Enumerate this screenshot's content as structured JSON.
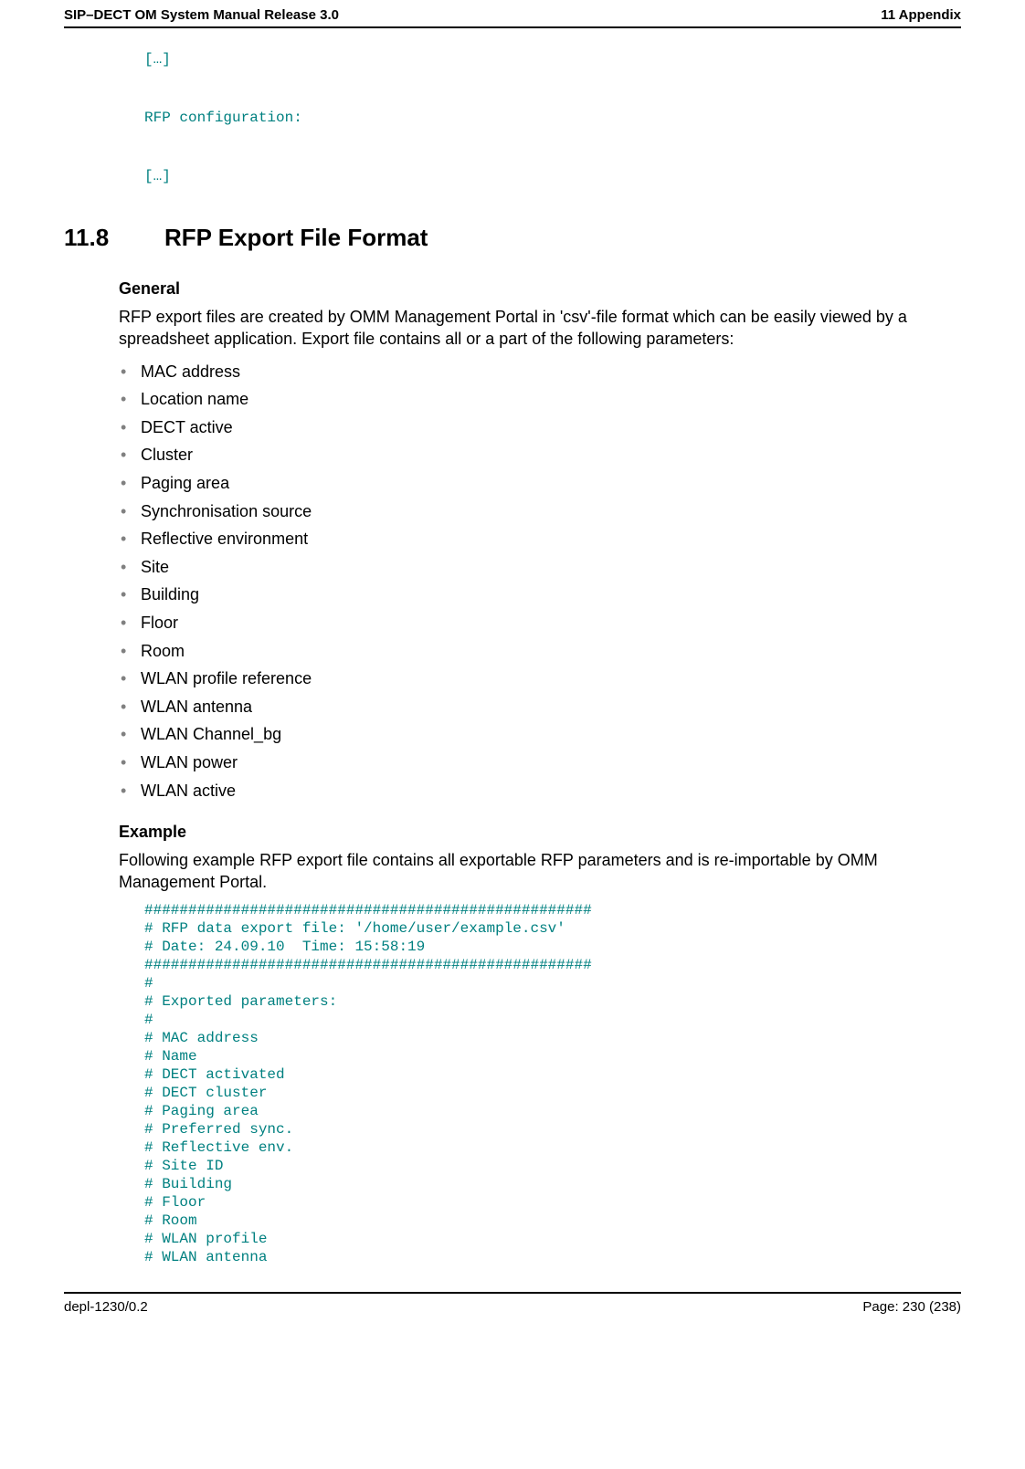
{
  "header": {
    "left": "SIP–DECT OM System Manual Release 3.0",
    "right": "11 Appendix"
  },
  "pre_code": {
    "lines": [
      "[…]",
      "RFP configuration:",
      "[…]"
    ],
    "text_color": "#008080",
    "font_family": "Courier New"
  },
  "section": {
    "number": "11.8",
    "title": "RFP Export File Format",
    "title_fontsize": 26
  },
  "general": {
    "heading": "General",
    "paragraph": "RFP export files are created by OMM Management Portal in 'csv'-file format which can be easily viewed by a spreadsheet application. Export file contains all or a part of the following parameters:",
    "bullets": [
      "MAC address",
      "Location name",
      "DECT active",
      "Cluster",
      "Paging area",
      "Synchronisation source",
      "Reflective environment",
      "Site",
      "Building",
      "Floor",
      "Room",
      "WLAN profile reference",
      "WLAN antenna",
      "WLAN Channel_bg",
      "WLAN power",
      "WLAN active"
    ],
    "bullet_color": "#808080"
  },
  "example": {
    "heading": "Example",
    "paragraph": "Following example RFP export file contains all exportable RFP parameters and is re-importable by OMM Management Portal.",
    "code_lines": [
      "###################################################",
      "# RFP data export file: '/home/user/example.csv'",
      "# Date: 24.09.10  Time: 15:58:19",
      "###################################################",
      "#",
      "# Exported parameters:",
      "#",
      "# MAC address",
      "# Name",
      "# DECT activated",
      "# DECT cluster",
      "# Paging area",
      "# Preferred sync.",
      "# Reflective env.",
      "# Site ID",
      "# Building",
      "# Floor",
      "# Room",
      "# WLAN profile",
      "# WLAN antenna"
    ],
    "code_color": "#008080"
  },
  "footer": {
    "left": "depl-1230/0.2",
    "right": "Page: 230 (238)"
  },
  "colors": {
    "text": "#000000",
    "background": "#ffffff",
    "rule": "#000000",
    "code": "#008080",
    "bullet": "#808080"
  }
}
